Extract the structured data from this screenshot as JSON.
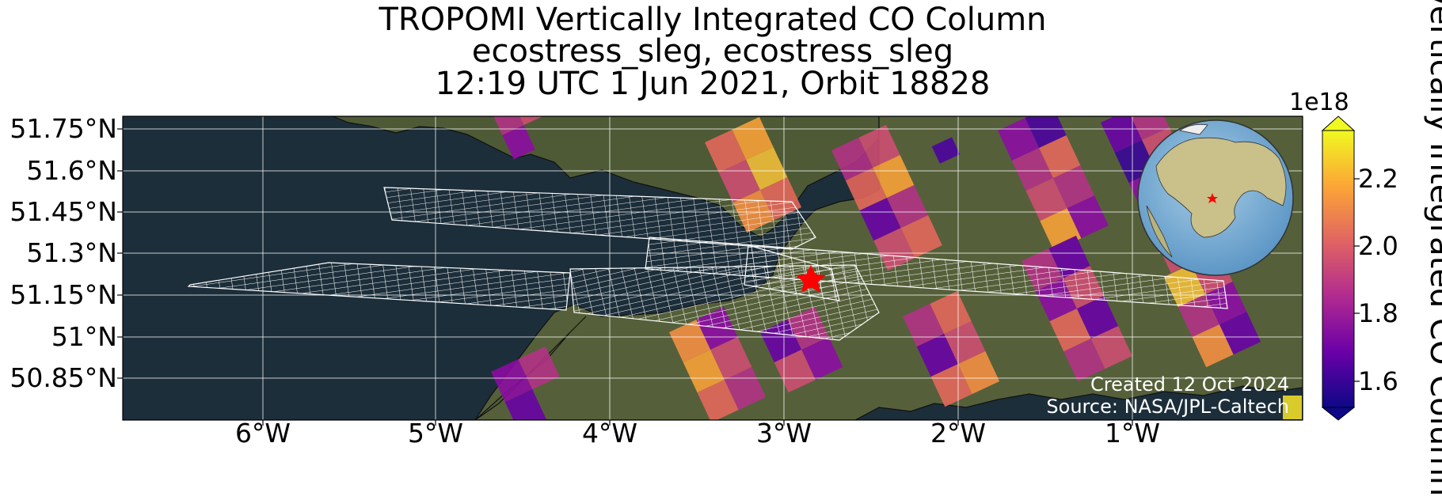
{
  "title": {
    "line1": "TROPOMI Vertically Integrated CO Column",
    "line2": "ecostress_sleg, ecostress_sleg",
    "line3": "12:19 UTC 1 Jun 2021, Orbit 18828"
  },
  "axes": {
    "lat_ticks": [
      "51.75°N",
      "51.6°N",
      "51.45°N",
      "51.3°N",
      "51.15°N",
      "51°N",
      "50.85°N"
    ],
    "lon_ticks": [
      "6°W",
      "5°W",
      "4°W",
      "3°W",
      "2°W",
      "1°W"
    ]
  },
  "colorbar": {
    "exponent": "1e18",
    "ticks": [
      "2.2",
      "2.0",
      "1.8",
      "1.6"
    ],
    "label": "Vertically Integrated CO Column",
    "colormap": "plasma",
    "range": [
      1.5,
      2.35
    ]
  },
  "credits": {
    "created": "Created 12 Oct 2024",
    "source": "Source: NASA/JPL-Caltech"
  },
  "target_marker": {
    "symbol": "star",
    "color": "#ff0000"
  },
  "colors": {
    "sea": "#1c2e3a",
    "land": "#4d5a35",
    "footprint_grid": "#ffffff"
  }
}
